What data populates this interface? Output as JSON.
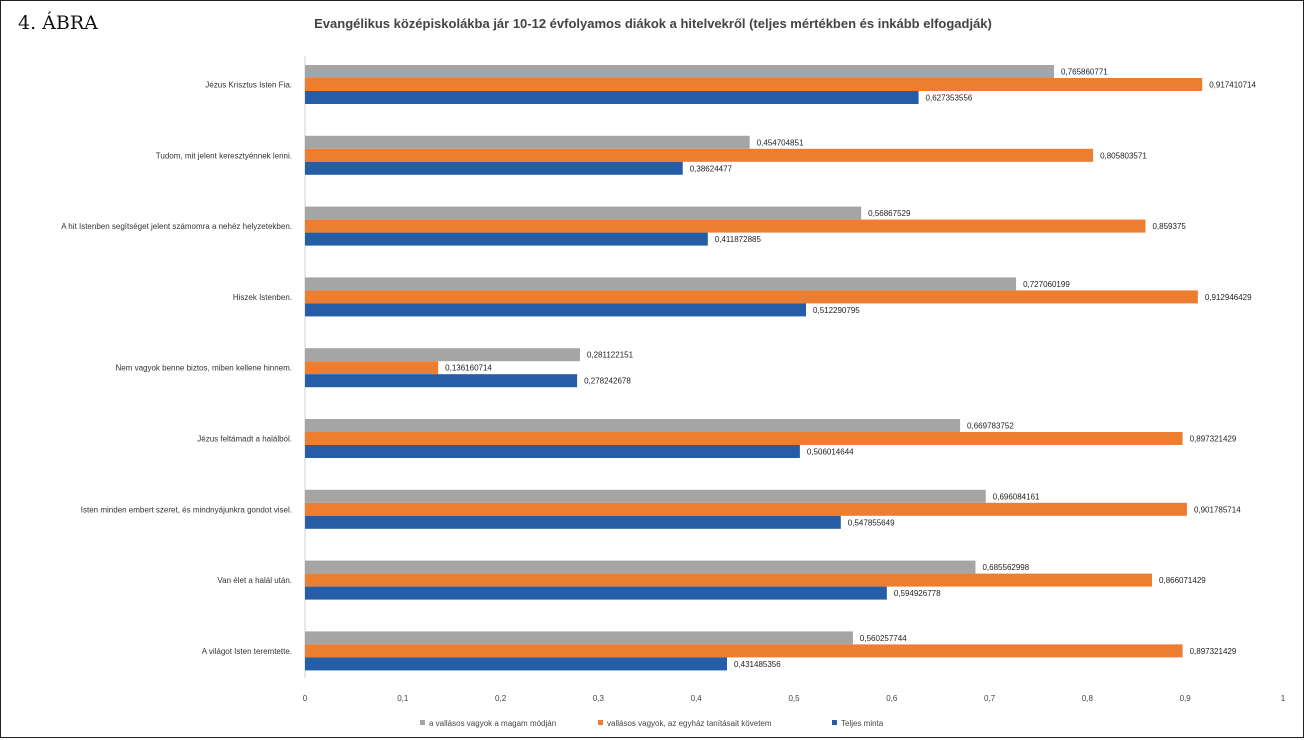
{
  "figure_label": "4. ÁBRA",
  "chart_data": {
    "type": "bar",
    "orientation": "horizontal",
    "title": "Evangélikus középiskolákba jár 10-12 évfolyamos diákok a hitelvekről (teljes mértékben és inkább elfogadják)",
    "categories": [
      "Jézus Krisztus Isten Fia.",
      "Tudom, mit jelent keresztyénnek lenni.",
      "A hit Istenben segítséget jelent számomra a nehéz helyzetekben.",
      "Hiszek Istenben.",
      "Nem vagyok benne biztos, miben kellene hinnem.",
      "Jézus feltámadt a halálból.",
      "Isten minden embert szeret, és mindnyájunkra gondot visel.",
      "Van élet a halál után.",
      "A világot Isten teremtette."
    ],
    "series": [
      {
        "name": "a vallásos vagyok a magam módján",
        "color": "#a5a5a5",
        "values": [
          0.765860771,
          0.454704851,
          0.56867529,
          0.727060199,
          0.281122151,
          0.669783752,
          0.696084161,
          0.685562998,
          0.560257744
        ],
        "labels": [
          "0,765860771",
          "0,454704851",
          "0,56867529",
          "0,727060199",
          "0,281122151",
          "0,669783752",
          "0,696084161",
          "0,685562998",
          "0,560257744"
        ]
      },
      {
        "name": "vallásos vagyok, az egyház tanításait követem",
        "color": "#ed7d31",
        "values": [
          0.917410714,
          0.805803571,
          0.859375,
          0.912946429,
          0.136160714,
          0.897321429,
          0.901785714,
          0.866071429,
          0.897321429
        ],
        "labels": [
          "0,917410714",
          "0,805803571",
          "0,859375",
          "0,912946429",
          "0,136160714",
          "0,897321429",
          "0,901785714",
          "0,866071429",
          "0,897321429"
        ]
      },
      {
        "name": "Teljes minta",
        "color": "#255ea6",
        "values": [
          0.627353556,
          0.38624477,
          0.411872885,
          0.512290795,
          0.278242678,
          0.506014644,
          0.547855649,
          0.594926778,
          0.431485356
        ],
        "labels": [
          "0,627353556",
          "0,38624477",
          "0,411872885",
          "0,512290795",
          "0,278242678",
          "0,506014644",
          "0,547855649",
          "0,594926778",
          "0,431485356"
        ]
      }
    ],
    "xlim": [
      0,
      1
    ],
    "xticks": [
      "0",
      "0,1",
      "0,2",
      "0,3",
      "0,4",
      "0,5",
      "0,6",
      "0,7",
      "0,8",
      "0,9",
      "1"
    ],
    "grid": false,
    "legend_position": "bottom"
  }
}
